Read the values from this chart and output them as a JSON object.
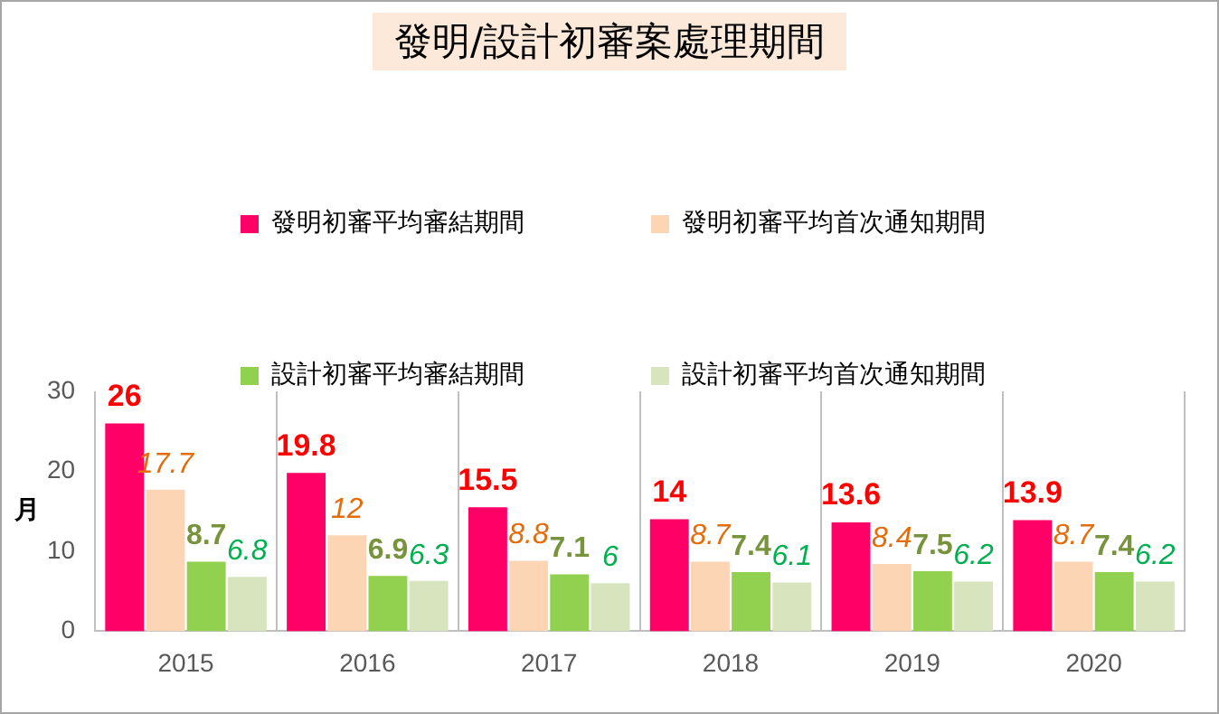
{
  "chart_data": {
    "type": "bar",
    "title": "發明/設計初審案處理期間",
    "ylabel": "月",
    "categories": [
      "2015",
      "2016",
      "2017",
      "2018",
      "2019",
      "2020"
    ],
    "series": [
      {
        "name": "發明初審平均審結期間",
        "color": "#ff0066",
        "values": [
          26,
          19.8,
          15.5,
          14,
          13.6,
          13.9
        ]
      },
      {
        "name": "發明初審平均首次通知期間",
        "color": "#fcd5b5",
        "values": [
          17.7,
          12,
          8.8,
          8.7,
          8.4,
          8.7
        ]
      },
      {
        "name": "設計初審平均審結期間",
        "color": "#92d050",
        "values": [
          8.7,
          6.9,
          7.1,
          7.4,
          7.5,
          7.4
        ]
      },
      {
        "name": "設計初審平均首次通知期間",
        "color": "#d7e4bd",
        "values": [
          6.8,
          6.3,
          6,
          6.1,
          6.2,
          6.2
        ]
      }
    ],
    "ylim": [
      0,
      30
    ],
    "yticks": [
      0,
      10,
      20,
      30
    ],
    "grid": "x",
    "legend": "top",
    "data_labels": true
  }
}
